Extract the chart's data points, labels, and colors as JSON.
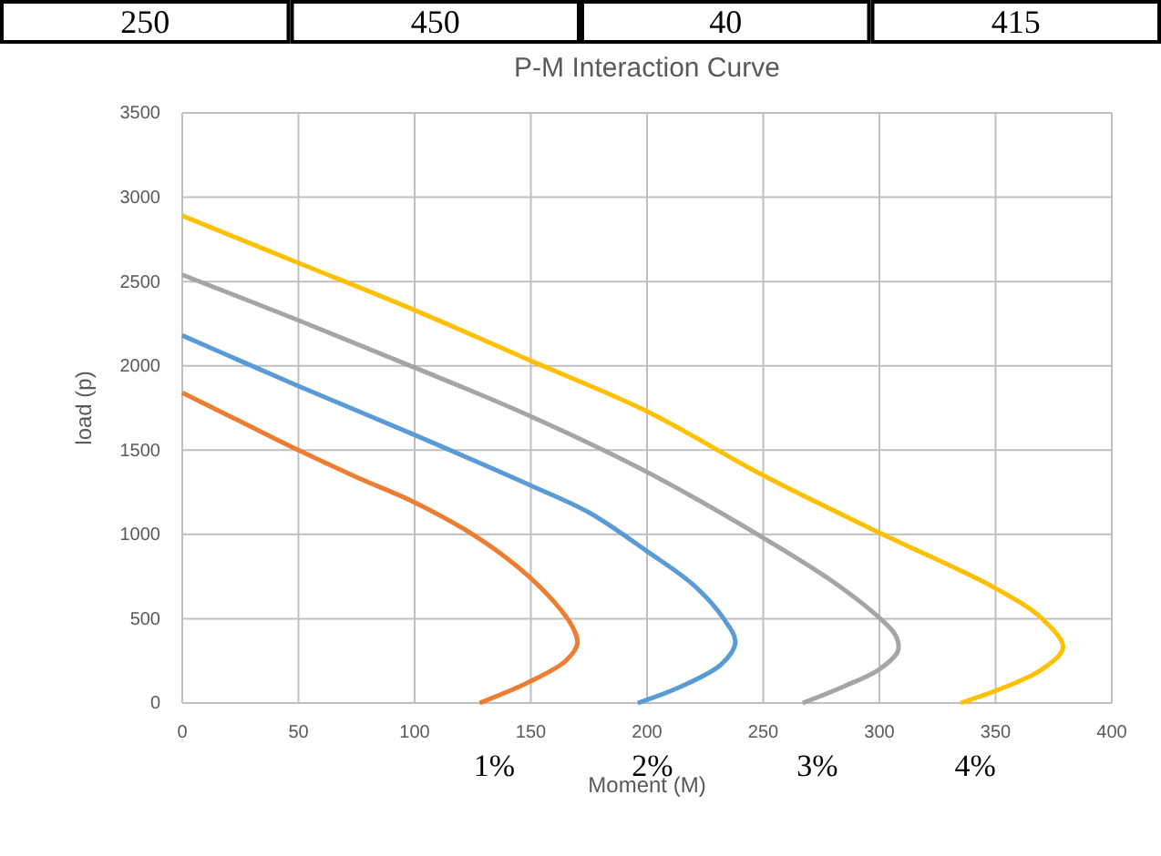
{
  "chart_data": {
    "type": "line",
    "title": "P-M Interaction Curve",
    "xlabel": "Moment (M)",
    "ylabel": "load (p)",
    "annotations": [
      "250",
      "450",
      "40",
      "415"
    ],
    "xlim": [
      0,
      400
    ],
    "xticks": [
      0,
      50,
      100,
      150,
      200,
      250,
      300,
      350,
      400
    ],
    "ylim": [
      0,
      3500
    ],
    "yticks": [
      0,
      500,
      1000,
      1500,
      2000,
      2500,
      3000,
      3500
    ],
    "grid": true,
    "legend": false,
    "marker": "none",
    "line_style": "solid",
    "series": [
      {
        "name": "1%",
        "color": "#ed7d31",
        "x": [
          0,
          25,
          50,
          75,
          100,
          125,
          145,
          160,
          168,
          170,
          165,
          150,
          128
        ],
        "values": [
          1840,
          1670,
          1500,
          1340,
          1190,
          1000,
          800,
          600,
          450,
          350,
          250,
          130,
          0
        ]
      },
      {
        "name": "2%",
        "color": "#5b9bd5",
        "x": [
          0,
          50,
          100,
          150,
          175,
          200,
          220,
          233,
          238,
          232,
          215,
          196
        ],
        "values": [
          2180,
          1880,
          1590,
          1290,
          1130,
          900,
          700,
          500,
          360,
          230,
          100,
          0
        ]
      },
      {
        "name": "3%",
        "color": "#a5a5a5",
        "x": [
          0,
          50,
          100,
          150,
          200,
          250,
          280,
          300,
          307,
          308,
          300,
          285,
          267
        ],
        "values": [
          2540,
          2270,
          1990,
          1700,
          1370,
          980,
          720,
          505,
          400,
          310,
          200,
          100,
          0
        ]
      },
      {
        "name": "4%",
        "color": "#ffc000",
        "x": [
          0,
          50,
          100,
          150,
          200,
          250,
          300,
          350,
          370,
          379,
          370,
          355,
          335
        ],
        "values": [
          2890,
          2610,
          2330,
          2030,
          1730,
          1350,
          1010,
          680,
          500,
          330,
          200,
          100,
          0
        ]
      }
    ]
  }
}
